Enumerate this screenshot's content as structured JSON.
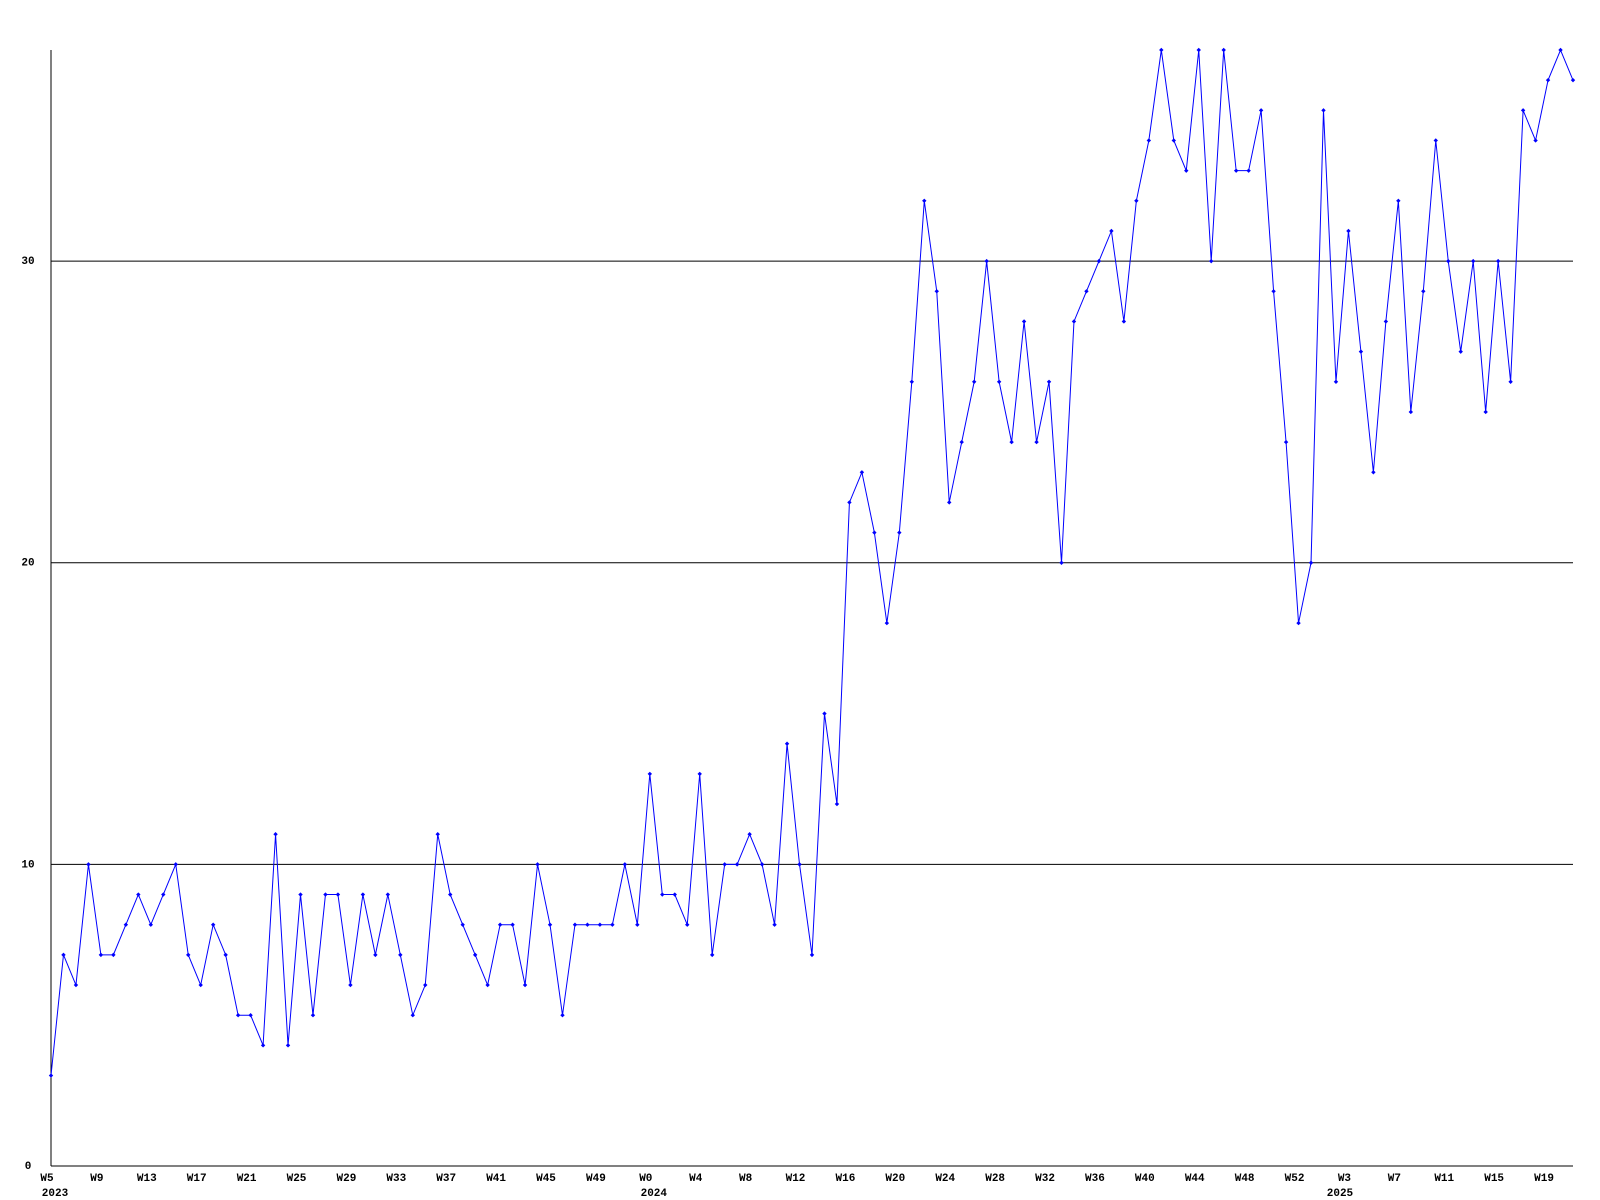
{
  "chart_data": {
    "type": "line",
    "categories": [
      "W5",
      null,
      null,
      null,
      "W9",
      null,
      null,
      null,
      "W13",
      null,
      null,
      null,
      "W17",
      null,
      null,
      null,
      "W21",
      null,
      null,
      null,
      "W25",
      null,
      null,
      null,
      "W29",
      null,
      null,
      null,
      "W33",
      null,
      null,
      null,
      "W37",
      null,
      null,
      null,
      "W41",
      null,
      null,
      null,
      "W45",
      null,
      null,
      null,
      "W49",
      null,
      null,
      null,
      "W0",
      null,
      null,
      null,
      "W4",
      null,
      null,
      null,
      "W8",
      null,
      null,
      null,
      "W12",
      null,
      null,
      null,
      "W16",
      null,
      null,
      null,
      "W20",
      null,
      null,
      null,
      "W24",
      null,
      null,
      null,
      "W28",
      null,
      null,
      null,
      "W32",
      null,
      null,
      null,
      "W36",
      null,
      null,
      null,
      "W40",
      null,
      null,
      null,
      "W44",
      null,
      null,
      null,
      "W48",
      null,
      null,
      null,
      "W52",
      null,
      null,
      null,
      "W3",
      null,
      null,
      null,
      "W7",
      null,
      null,
      null,
      "W11",
      null,
      null,
      null,
      "W15",
      null,
      null,
      null,
      "W19",
      null,
      null
    ],
    "years": [
      "2023",
      null,
      null,
      null,
      null,
      null,
      null,
      null,
      null,
      null,
      null,
      null,
      null,
      null,
      null,
      null,
      null,
      null,
      null,
      null,
      null,
      null,
      null,
      null,
      null,
      null,
      null,
      null,
      null,
      null,
      null,
      null,
      null,
      null,
      null,
      null,
      null,
      null,
      null,
      null,
      null,
      null,
      null,
      null,
      null,
      null,
      null,
      null,
      "2024",
      null,
      null,
      null,
      null,
      null,
      null,
      null,
      null,
      null,
      null,
      null,
      null,
      null,
      null,
      null,
      null,
      null,
      null,
      null,
      null,
      null,
      null,
      null,
      null,
      null,
      null,
      null,
      null,
      null,
      null,
      null,
      null,
      null,
      null,
      null,
      null,
      null,
      null,
      null,
      null,
      null,
      null,
      null,
      null,
      null,
      null,
      null,
      null,
      null,
      null,
      null,
      null,
      null,
      null,
      "2025",
      null,
      null,
      null,
      null,
      null,
      null,
      null,
      null,
      null,
      null,
      null,
      null,
      null,
      null,
      null,
      null,
      null,
      null,
      null,
      null,
      null
    ],
    "values": [
      3,
      7,
      6,
      10,
      7,
      7,
      8,
      9,
      8,
      9,
      10,
      7,
      6,
      8,
      7,
      5,
      5,
      4,
      11,
      4,
      9,
      5,
      9,
      9,
      6,
      9,
      7,
      9,
      7,
      5,
      6,
      11,
      9,
      8,
      7,
      6,
      8,
      8,
      6,
      10,
      8,
      5,
      8,
      8,
      8,
      8,
      10,
      8,
      13,
      9,
      9,
      8,
      13,
      7,
      10,
      10,
      11,
      10,
      8,
      14,
      10,
      7,
      15,
      12,
      22,
      23,
      21,
      18,
      21,
      26,
      32,
      29,
      22,
      24,
      26,
      30,
      26,
      24,
      28,
      24,
      26,
      20,
      28,
      29,
      30,
      31,
      28,
      32,
      34,
      37,
      34,
      33,
      37,
      30,
      37,
      33,
      33,
      35,
      29,
      24,
      18,
      20,
      35,
      26,
      31,
      27,
      23,
      28,
      32,
      25,
      29,
      34,
      30,
      27,
      30,
      25,
      30,
      26,
      35,
      34,
      36,
      37,
      36
    ],
    "color": "#0000ff",
    "ylim": [
      0,
      37
    ],
    "yticks": [
      0,
      10,
      20,
      30
    ],
    "grid": true
  }
}
